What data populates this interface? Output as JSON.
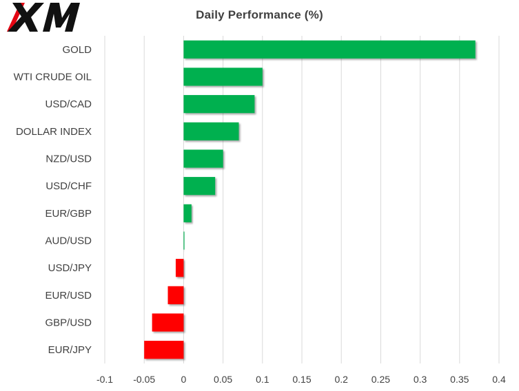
{
  "brand": {
    "logo_text": "XM",
    "logo_colors": {
      "red": "#e30613",
      "black": "#111111"
    }
  },
  "chart_data": {
    "type": "bar",
    "orientation": "horizontal",
    "title": "Daily Performance  (%)",
    "xlabel": "",
    "ylabel": "",
    "categories": [
      "GOLD",
      "WTI CRUDE OIL",
      "USD/CAD",
      "DOLLAR INDEX",
      "NZD/USD",
      "USD/CHF",
      "EUR/GBP",
      "AUD/USD",
      "USD/JPY",
      "EUR/USD",
      "GBP/USD",
      "EUR/JPY"
    ],
    "values": [
      0.37,
      0.1,
      0.09,
      0.07,
      0.05,
      0.04,
      0.01,
      0.001,
      -0.01,
      -0.02,
      -0.04,
      -0.05
    ],
    "xlim": [
      -0.1,
      0.4
    ],
    "xticks": [
      "-0.1",
      "-0.05",
      "0",
      "0.05",
      "0.1",
      "0.15",
      "0.2",
      "0.25",
      "0.3",
      "0.35",
      "0.4"
    ],
    "xtick_values": [
      -0.1,
      -0.05,
      0,
      0.05,
      0.1,
      0.15,
      0.2,
      0.25,
      0.3,
      0.35,
      0.4
    ],
    "grid": "vertical",
    "legend": "none",
    "colors": {
      "positive": "#00b050",
      "negative": "#ff0000",
      "grid": "#d9d9d9",
      "text": "#404040"
    }
  }
}
